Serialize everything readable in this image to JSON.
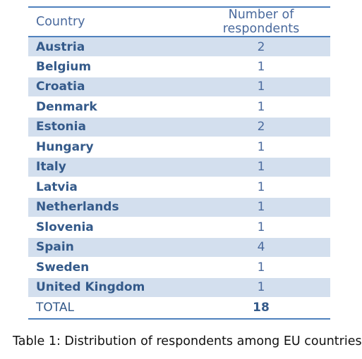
{
  "table": {
    "headers": {
      "country": "Country",
      "respondents": "Number of respondents"
    },
    "rows": [
      {
        "country": "Austria",
        "respondents": "2"
      },
      {
        "country": "Belgium",
        "respondents": "1"
      },
      {
        "country": "Croatia",
        "respondents": "1"
      },
      {
        "country": "Denmark",
        "respondents": "1"
      },
      {
        "country": "Estonia",
        "respondents": "2"
      },
      {
        "country": "Hungary",
        "respondents": "1"
      },
      {
        "country": "Italy",
        "respondents": "1"
      },
      {
        "country": "Latvia",
        "respondents": "1"
      },
      {
        "country": "Netherlands",
        "respondents": "1"
      },
      {
        "country": "Slovenia",
        "respondents": "1"
      },
      {
        "country": "Spain",
        "respondents": "4"
      },
      {
        "country": "Sweden",
        "respondents": "1"
      },
      {
        "country": "United Kingdom",
        "respondents": "1"
      }
    ],
    "total": {
      "label": "TOTAL",
      "value": "18"
    }
  },
  "caption": "Table 1: Distribution of respondents among EU countries",
  "colors": {
    "rule": "#4f81bd",
    "shade": "#d3dfee",
    "text_dark_blue": "#345a8a",
    "text_light_blue": "#4a6a9d"
  }
}
